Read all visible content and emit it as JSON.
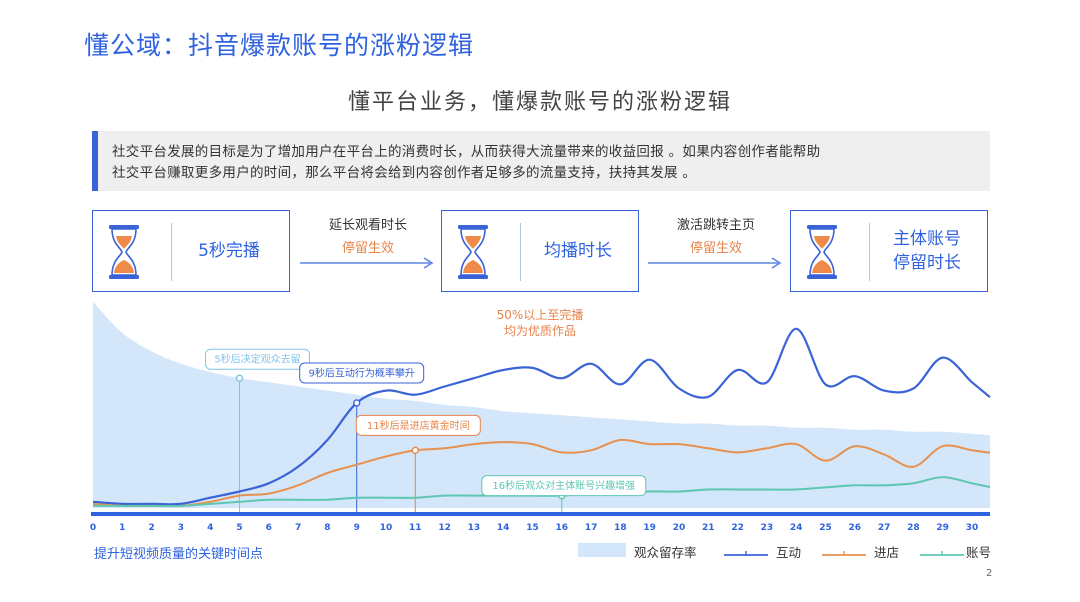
{
  "header": {
    "title": "懂公域：抖音爆款账号的涨粉逻辑",
    "subtitle": "懂平台业务，懂爆款账号的涨粉逻辑"
  },
  "intro": {
    "line1": "社交平台发展的目标是为了增加用户在平台上的消费时长，从而获得大流量带来的收益回报 。如果内容创作者能帮助",
    "line2": "社交平台赚取更多用户的时间，那么平台将会给到内容创作者足够多的流量支持，扶持其发展 。"
  },
  "flow": {
    "stages": [
      {
        "line1": "5秒完播",
        "line2": ""
      },
      {
        "line1": "均播时长",
        "line2": ""
      },
      {
        "line1": "主体账号",
        "line2": "停留时长"
      }
    ],
    "arrows": [
      {
        "top": "延长观看时长",
        "bottom": "停留生效"
      },
      {
        "top": "激活跳转主页",
        "bottom": "停留生效"
      }
    ],
    "icon": "hourglass-icon"
  },
  "note_50": {
    "line1": "50%以上至完播",
    "line2": "均为优质作品"
  },
  "footer_label": "提升短视频质量的关键时间点",
  "page_number": "2",
  "chart_data": {
    "type": "line",
    "title": "",
    "xlabel": "",
    "ylabel": "",
    "x": [
      0,
      1,
      2,
      3,
      4,
      5,
      6,
      7,
      8,
      9,
      10,
      11,
      12,
      13,
      14,
      15,
      16,
      17,
      18,
      19,
      20,
      21,
      22,
      23,
      24,
      25,
      26,
      27,
      28,
      29,
      30
    ],
    "ylim": [
      0,
      100
    ],
    "grid": false,
    "legend_position": "bottom-right",
    "series": [
      {
        "name": "观众留存率",
        "type": "area",
        "color": "#d3e6fa",
        "values": [
          100,
          85,
          76,
          70,
          66,
          63,
          61,
          59,
          57,
          55,
          53,
          52,
          50,
          49,
          47,
          46,
          45,
          44,
          43,
          42,
          41,
          41,
          40,
          40,
          39,
          39,
          38,
          38,
          37,
          37,
          36
        ]
      },
      {
        "name": "互动",
        "type": "line",
        "color": "#3a63d8",
        "values": [
          3,
          2,
          2,
          2,
          5,
          8,
          12,
          20,
          33,
          51,
          57,
          55,
          59,
          63,
          67,
          68,
          63,
          70,
          60,
          72,
          58,
          54,
          67,
          61,
          87,
          60,
          64,
          57,
          58,
          73,
          61
        ]
      },
      {
        "name": "进店",
        "type": "line",
        "color": "#e8914e",
        "values": [
          2,
          1,
          1,
          1,
          3,
          6,
          7,
          11,
          17,
          21,
          25,
          28,
          29,
          31,
          32,
          31,
          27,
          28,
          33,
          31,
          31,
          29,
          27,
          29,
          31,
          23,
          30,
          26,
          20,
          30,
          28
        ]
      },
      {
        "name": "账号",
        "type": "line",
        "color": "#5ec7b2",
        "values": [
          1,
          1,
          1,
          1,
          2,
          3,
          4,
          4,
          4,
          5,
          5,
          5,
          6,
          6,
          6,
          6,
          6,
          7,
          7,
          8,
          8,
          9,
          9,
          9,
          9,
          10,
          11,
          11,
          12,
          15,
          12
        ]
      }
    ],
    "annotations": [
      {
        "text": "5秒后决定观众去留",
        "x": 5,
        "y": 63,
        "color": "#7fc4ea"
      },
      {
        "text": "9秒后互动行为概率攀升",
        "x": 9,
        "y": 51,
        "color": "#3a63d8"
      },
      {
        "text": "11秒后是进店黄金时间",
        "x": 11,
        "y": 28,
        "color": "#e8844a"
      },
      {
        "text": "16秒后观众对主体账号兴趣增强",
        "x": 16,
        "y": 6,
        "color": "#5ec7b2"
      }
    ]
  }
}
